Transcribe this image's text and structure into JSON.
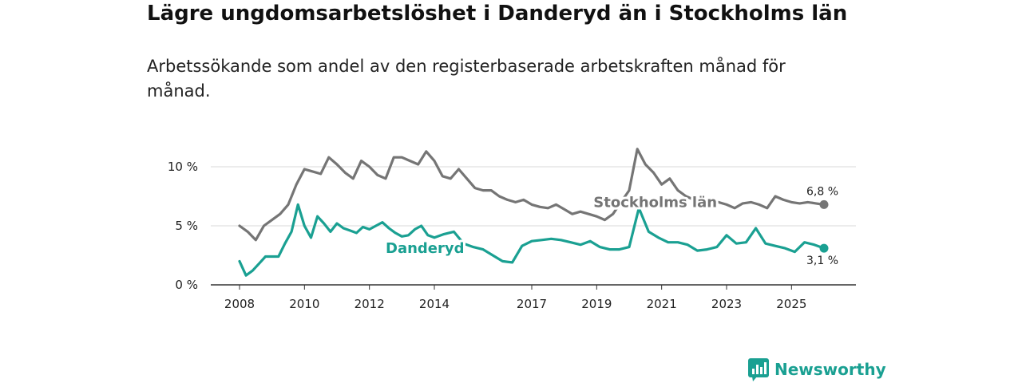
{
  "title": "Lägre ungdomsarbetslöshet i Danderyd än i Stockholms län",
  "subtitle": "Arbetssökande som andel av den registerbaserade arbetskraften månad för månad.",
  "logo": {
    "text": "Newsworthy",
    "icon": "bar-chart-speech-icon",
    "color": "#1aa092"
  },
  "chart_data": {
    "type": "line",
    "title": "Lägre ungdomsarbetslöshet i Danderyd än i Stockholms län",
    "xlabel": "",
    "ylabel": "",
    "xlim": [
      2008.0,
      2026.5
    ],
    "ylim": [
      0,
      13
    ],
    "grid": true,
    "y_ticks": [
      0,
      5,
      10
    ],
    "y_tick_labels": [
      "0 %",
      "5 %",
      "10 %"
    ],
    "x_ticks": [
      2008,
      2010,
      2012,
      2014,
      2017,
      2019,
      2021,
      2023,
      2025
    ],
    "x_tick_labels": [
      "2008",
      "2010",
      "2012",
      "2014",
      "2017",
      "2019",
      "2021",
      "2023",
      "2025"
    ],
    "series": [
      {
        "name": "Stockholms län",
        "color": "#757575",
        "end_label": "6,8 %",
        "x": [
          2008.0,
          2008.25,
          2008.5,
          2008.75,
          2009.0,
          2009.25,
          2009.5,
          2009.75,
          2010.0,
          2010.25,
          2010.5,
          2010.75,
          2011.0,
          2011.25,
          2011.5,
          2011.75,
          2012.0,
          2012.25,
          2012.5,
          2012.75,
          2013.0,
          2013.25,
          2013.5,
          2013.75,
          2014.0,
          2014.25,
          2014.5,
          2014.75,
          2015.0,
          2015.25,
          2015.5,
          2015.75,
          2016.0,
          2016.25,
          2016.5,
          2016.75,
          2017.0,
          2017.25,
          2017.5,
          2017.75,
          2018.0,
          2018.25,
          2018.5,
          2018.75,
          2019.0,
          2019.25,
          2019.5,
          2019.75,
          2020.0,
          2020.25,
          2020.5,
          2020.75,
          2021.0,
          2021.25,
          2021.5,
          2021.75,
          2022.0,
          2022.25,
          2022.5,
          2022.75,
          2023.0,
          2023.25,
          2023.5,
          2023.75,
          2024.0,
          2024.25,
          2024.5,
          2024.75,
          2025.0,
          2025.25,
          2025.5,
          2025.75,
          2026.0
        ],
        "values": [
          5.0,
          4.5,
          3.8,
          5.0,
          5.5,
          6.0,
          6.8,
          8.5,
          9.8,
          9.6,
          9.4,
          10.8,
          10.2,
          9.5,
          9.0,
          10.5,
          10.0,
          9.3,
          9.0,
          10.8,
          10.8,
          10.5,
          10.2,
          11.3,
          10.5,
          9.2,
          9.0,
          9.8,
          9.0,
          8.2,
          8.0,
          8.0,
          7.5,
          7.2,
          7.0,
          7.2,
          6.8,
          6.6,
          6.5,
          6.8,
          6.4,
          6.0,
          6.2,
          6.0,
          5.8,
          5.5,
          6.0,
          7.0,
          8.0,
          11.5,
          10.2,
          9.5,
          8.5,
          9.0,
          8.0,
          7.5,
          7.2,
          7.2,
          7.0,
          7.0,
          6.8,
          6.5,
          6.9,
          7.0,
          6.8,
          6.5,
          7.5,
          7.2,
          7.0,
          6.9,
          7.0,
          6.9,
          6.8
        ]
      },
      {
        "name": "Danderyd",
        "color": "#1aa092",
        "end_label": "3,1 %",
        "x": [
          2008.0,
          2008.2,
          2008.4,
          2008.6,
          2008.8,
          2009.0,
          2009.2,
          2009.4,
          2009.6,
          2009.8,
          2010.0,
          2010.2,
          2010.4,
          2010.6,
          2010.8,
          2011.0,
          2011.2,
          2011.4,
          2011.6,
          2011.8,
          2012.0,
          2012.2,
          2012.4,
          2012.6,
          2012.8,
          2013.0,
          2013.2,
          2013.4,
          2013.6,
          2013.8,
          2014.0,
          2014.3,
          2014.6,
          2014.9,
          2015.2,
          2015.5,
          2015.8,
          2016.1,
          2016.4,
          2016.7,
          2017.0,
          2017.3,
          2017.6,
          2017.9,
          2018.2,
          2018.5,
          2018.8,
          2019.1,
          2019.4,
          2019.7,
          2020.0,
          2020.3,
          2020.6,
          2020.9,
          2021.2,
          2021.5,
          2021.8,
          2022.1,
          2022.4,
          2022.7,
          2023.0,
          2023.3,
          2023.6,
          2023.9,
          2024.2,
          2024.5,
          2024.8,
          2025.1,
          2025.4,
          2025.7,
          2026.0
        ],
        "values": [
          2.0,
          0.8,
          1.2,
          1.8,
          2.4,
          2.4,
          2.4,
          3.5,
          4.5,
          6.8,
          5.0,
          4.0,
          5.8,
          5.2,
          4.5,
          5.2,
          4.8,
          4.6,
          4.4,
          4.9,
          4.7,
          5.0,
          5.3,
          4.8,
          4.4,
          4.1,
          4.2,
          4.7,
          5.0,
          4.2,
          4.0,
          4.3,
          4.5,
          3.5,
          3.2,
          3.0,
          2.5,
          2.0,
          1.9,
          3.3,
          3.7,
          3.8,
          3.9,
          3.8,
          3.6,
          3.4,
          3.7,
          3.2,
          3.0,
          3.0,
          3.2,
          6.5,
          4.5,
          4.0,
          3.6,
          3.6,
          3.4,
          2.9,
          3.0,
          3.2,
          4.2,
          3.5,
          3.6,
          4.8,
          3.5,
          3.3,
          3.1,
          2.8,
          3.6,
          3.4,
          3.1
        ]
      }
    ],
    "annotations": [
      {
        "text": "Stockholms län",
        "series": "Stockholms län"
      },
      {
        "text": "Danderyd",
        "series": "Danderyd"
      }
    ]
  }
}
